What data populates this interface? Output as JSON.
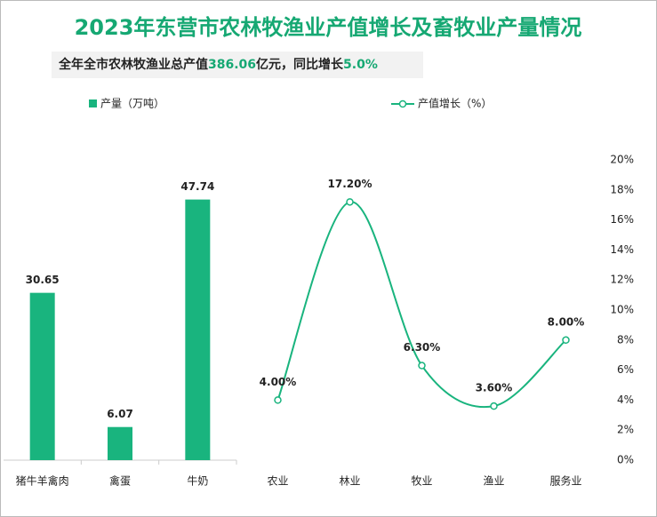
{
  "title": "2023年东营市农林牧渔业产值增长及畜牧业产量情况",
  "subtitle": [
    "全年全市农林牧渔业总产值",
    "386.06",
    "亿元，同比增长",
    "5.0%"
  ],
  "chart_data": [
    {
      "type": "bar",
      "categories": [
        "猪牛羊禽肉",
        "禽蛋",
        "牛奶"
      ],
      "series": [
        {
          "name": "产量（万吨）",
          "color": "#19b47e",
          "values": [
            30.65,
            6.07,
            47.74
          ]
        }
      ],
      "ylim": [
        0,
        55
      ]
    },
    {
      "type": "line",
      "categories": [
        "农业",
        "林业",
        "牧业",
        "渔业",
        "服务业"
      ],
      "series": [
        {
          "name": "产值增长（%）",
          "color": "#19b47e",
          "axis": "y2",
          "values": [
            4.0,
            17.2,
            6.3,
            3.6,
            8.0
          ],
          "value_labels": [
            "4.00%",
            "17.20%",
            "6.30%",
            "3.60%",
            "8.00%"
          ]
        }
      ],
      "y2lim": [
        0,
        20
      ],
      "y2ticks": [
        {
          "value": 0,
          "label": "0%"
        },
        {
          "value": 2,
          "label": "2%"
        },
        {
          "value": 4,
          "label": "4%"
        },
        {
          "value": 6,
          "label": "6%"
        },
        {
          "value": 8,
          "label": "8%"
        },
        {
          "value": 10,
          "label": "10%"
        },
        {
          "value": 12,
          "label": "12%"
        },
        {
          "value": 14,
          "label": "14%"
        },
        {
          "value": 16,
          "label": "16%"
        },
        {
          "value": 18,
          "label": "18%"
        },
        {
          "value": 20,
          "label": "20%"
        }
      ]
    }
  ]
}
